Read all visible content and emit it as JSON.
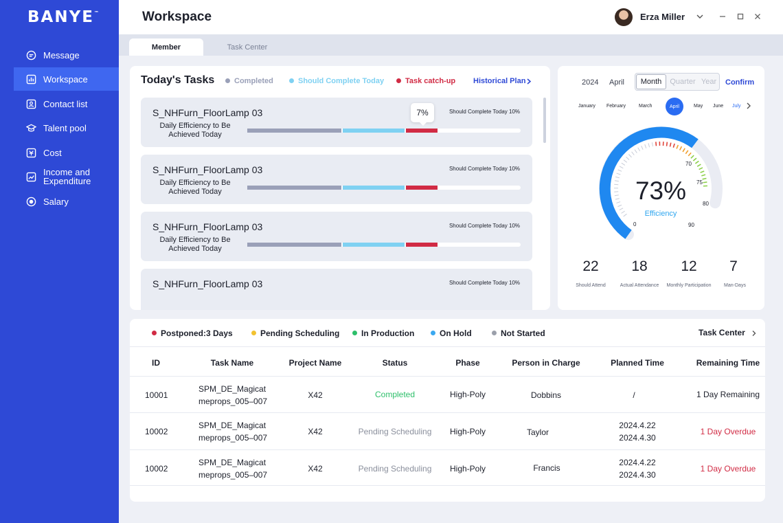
{
  "app": {
    "logo": "BANYE",
    "logo_tm": "™",
    "page_title": "Workspace",
    "user_name": "Erza Miller"
  },
  "sidebar": {
    "items": [
      {
        "label": "Message",
        "icon": "message-icon"
      },
      {
        "label": "Workspace",
        "icon": "workspace-icon",
        "active": true
      },
      {
        "label": "Contact list",
        "icon": "contact-icon"
      },
      {
        "label": "Talent pool",
        "icon": "talent-icon"
      },
      {
        "label": "Cost",
        "icon": "cost-icon"
      },
      {
        "label": "Income and Expenditure",
        "icon": "income-icon"
      },
      {
        "label": "Salary",
        "icon": "salary-icon"
      }
    ]
  },
  "tabs": [
    {
      "label": "Member",
      "active": true
    },
    {
      "label": "Task Center",
      "active": false
    }
  ],
  "todays_tasks": {
    "title": "Today's Tasks",
    "legend": [
      {
        "label": "Completed",
        "color": "#9aa0b8"
      },
      {
        "label": "Should Complete Today",
        "color": "#7fd1f2"
      },
      {
        "label": "Task catch-up",
        "color": "#d12b44"
      }
    ],
    "historical_link": "Historical Plan",
    "tooltip": "7%",
    "tasks": [
      {
        "name": "S_NHFurn_FloorLamp 03",
        "sub": "Daily Efficiency to Be Achieved Today",
        "should": "Should Complete Today 10%",
        "completed": 0.35,
        "should_part": 0.23,
        "catchup": 0.12
      },
      {
        "name": "S_NHFurn_FloorLamp 03",
        "sub": "Daily Efficiency to Be Achieved Today",
        "should": "Should Complete Today 10%",
        "completed": 0.35,
        "should_part": 0.23,
        "catchup": 0.12
      },
      {
        "name": "S_NHFurn_FloorLamp 03",
        "sub": "Daily Efficiency to Be Achieved Today",
        "should": "Should Complete Today 10%",
        "completed": 0.35,
        "should_part": 0.23,
        "catchup": 0.12
      },
      {
        "name": "S_NHFurn_FloorLamp 03",
        "sub": "",
        "should": "Should Complete Today 10%",
        "completed": 0,
        "should_part": 0,
        "catchup": 0
      }
    ]
  },
  "efficiency": {
    "year": "2024",
    "month": "April",
    "periods": [
      {
        "label": "Month",
        "active": true
      },
      {
        "label": "Quarter",
        "active": false
      },
      {
        "label": "Year",
        "active": false
      }
    ],
    "confirm": "Confirm",
    "months": [
      {
        "label": "January"
      },
      {
        "label": "February"
      },
      {
        "label": "March"
      },
      {
        "label": "April",
        "active": true
      },
      {
        "label": "May"
      },
      {
        "label": "June"
      },
      {
        "label": "July",
        "highlight": true
      }
    ],
    "value_text": "73%",
    "value": 0.73,
    "label": "Efficiency",
    "scale": [
      "0",
      "70",
      "75",
      "80",
      "90"
    ],
    "stats": [
      {
        "value": "22",
        "label": "Should Attend"
      },
      {
        "value": "18",
        "label": "Actual Attendance"
      },
      {
        "value": "12",
        "label": "Monthly Participation"
      },
      {
        "value": "7",
        "label": "Man-Days"
      }
    ]
  },
  "task_table": {
    "status_legend": [
      {
        "label": "Postponed:3 Days",
        "color": "#d12b44"
      },
      {
        "label": "Pending Scheduling",
        "color": "#f2c230"
      },
      {
        "label": "In Production",
        "color": "#2dbf6a"
      },
      {
        "label": "On Hold",
        "color": "#3aa8f0"
      },
      {
        "label": "Not Started",
        "color": "#9ba0ab"
      }
    ],
    "task_center_link": "Task Center",
    "columns": [
      "ID",
      "Task Name",
      "Project Name",
      "Status",
      "Phase",
      "Person in Charge",
      "Planned Time",
      "Remaining Time"
    ],
    "rows": [
      {
        "id": "10001",
        "task_line1": "SPM_DE_Magicat",
        "task_line2": "meprops_005–007",
        "project": "X42",
        "status": "Completed",
        "status_color": "#2dbf6a",
        "phase": "High-Poly",
        "person": "Dobbins",
        "planned_line1": "/",
        "planned_line2": "",
        "remaining": "1 Day Remaining",
        "remaining_color": "#1c1f2a"
      },
      {
        "id": "10002",
        "task_line1": "SPM_DE_Magicat",
        "task_line2": "meprops_005–007",
        "project": "X42",
        "status": "Pending Scheduling",
        "status_color": "#8a8f9c",
        "phase": "High-Poly",
        "person": "Taylor",
        "planned_line1": "2024.4.22",
        "planned_line2": "2024.4.30",
        "remaining": "1 Day Overdue",
        "remaining_color": "#d12b44"
      },
      {
        "id": "10002",
        "task_line1": "SPM_DE_Magicat",
        "task_line2": "meprops_005–007",
        "project": "X42",
        "status": "Pending Scheduling",
        "status_color": "#8a8f9c",
        "phase": "High-Poly",
        "person": "Francis",
        "planned_line1": "2024.4.22",
        "planned_line2": "2024.4.30",
        "remaining": "1 Day Overdue",
        "remaining_color": "#d12b44"
      }
    ]
  }
}
